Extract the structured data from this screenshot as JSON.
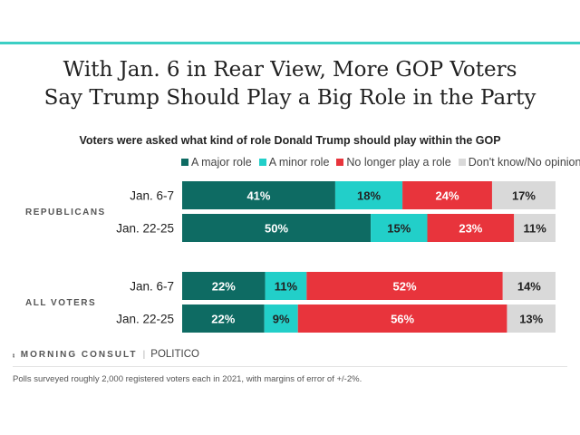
{
  "title_line1": "With Jan. 6 in Rear View, More GOP Voters",
  "title_line2": "Say Trump Should Play a Big Role in the Party",
  "subtitle": "Voters were asked what kind of role Donald Trump should play within the GOP",
  "footer": {
    "brand": "MORNING CONSULT",
    "partner": "POLITICO",
    "note": "Polls surveyed roughly 2,000 registered voters each in 2021, with margins of error of +/-2%."
  },
  "chart_data": {
    "type": "bar",
    "orientation": "horizontal-stacked",
    "unit": "%",
    "series": [
      {
        "name": "A major role",
        "color": "#0e6b63",
        "label_color": "#ffffff"
      },
      {
        "name": "A minor role",
        "color": "#22cfc9",
        "label_color": "#222222"
      },
      {
        "name": "No longer play a role",
        "color": "#e8343c",
        "label_color": "#ffffff"
      },
      {
        "name": "Don't know/No opinion",
        "color": "#d9d9d9",
        "label_color": "#222222"
      }
    ],
    "groups": [
      {
        "name": "REPUBLICANS",
        "rows": [
          {
            "label": "Jan. 6-7",
            "values": [
              41,
              18,
              24,
              17
            ]
          },
          {
            "label": "Jan. 22-25",
            "values": [
              50,
              15,
              23,
              11
            ]
          }
        ]
      },
      {
        "name": "ALL VOTERS",
        "rows": [
          {
            "label": "Jan. 6-7",
            "values": [
              22,
              11,
              52,
              14
            ]
          },
          {
            "label": "Jan. 22-25",
            "values": [
              22,
              9,
              56,
              13
            ]
          }
        ]
      }
    ]
  }
}
